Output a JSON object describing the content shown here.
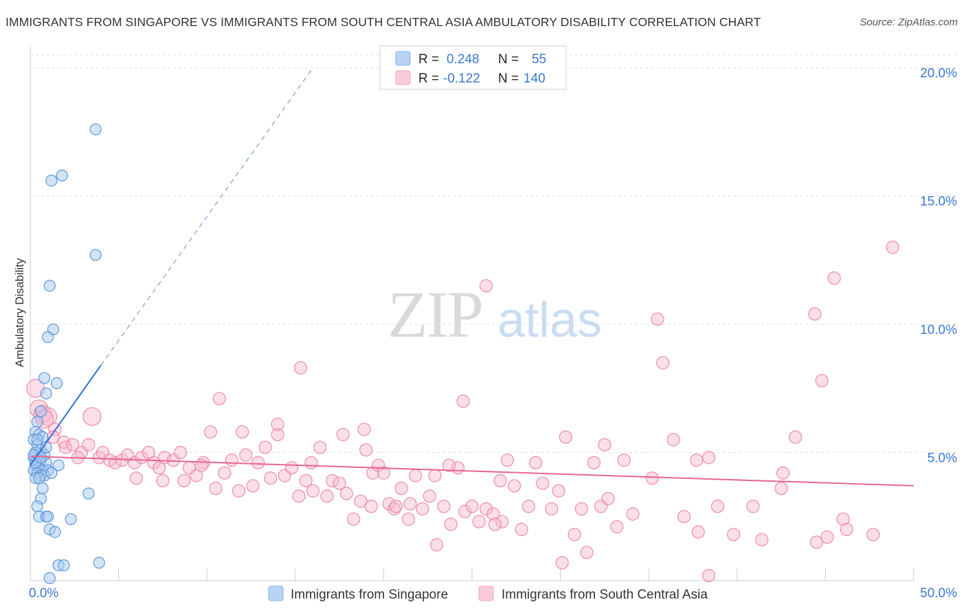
{
  "title": "IMMIGRANTS FROM SINGAPORE VS IMMIGRANTS FROM SOUTH CENTRAL ASIA AMBULATORY DISABILITY CORRELATION CHART",
  "source": "Source: ZipAtlas.com",
  "watermark": {
    "zip": "ZIP",
    "atlas": "atlas"
  },
  "legend_stats": [
    {
      "r_label": "R =",
      "r_value": "0.248",
      "n_label": "N =",
      "n_value": "55",
      "color": "#7fb3ea"
    },
    {
      "r_label": "R =",
      "r_value": "-0.122",
      "n_label": "N =",
      "n_value": "140",
      "color": "#f4a3bf"
    }
  ],
  "colors": {
    "blue_fill": "#a9c9f0",
    "blue_stroke": "#5b97dd",
    "blue_line": "#2f6fd1",
    "pink_fill": "#f7b9cc",
    "pink_stroke": "#ee8aaa",
    "pink_line": "#e8648f",
    "axis_text": "#3a78cf",
    "grid": "#dedede"
  },
  "chart_data": {
    "type": "scatter",
    "title": "IMMIGRANTS FROM SINGAPORE VS IMMIGRANTS FROM SOUTH CENTRAL ASIA AMBULATORY DISABILITY CORRELATION CHART",
    "xlabel": "",
    "ylabel": "Ambulatory Disability",
    "xlim": [
      0,
      50
    ],
    "ylim": [
      0,
      20.5
    ],
    "x_tick_labels": [
      "0.0%",
      "50.0%"
    ],
    "y_ticks": [
      5,
      10,
      15,
      20
    ],
    "y_tick_labels": [
      "5.0%",
      "10.0%",
      "15.0%",
      "20.0%"
    ],
    "grid": true,
    "legend_position": "bottom",
    "series": [
      {
        "name": "Immigrants from Singapore",
        "color": "#7fb3ea",
        "trend": {
          "x": [
            0.0,
            4.0
          ],
          "y": [
            4.5,
            8.4
          ],
          "extended_to": [
            16.0,
            20.0
          ]
        },
        "points": [
          [
            3.7,
            17.6
          ],
          [
            1.8,
            15.8
          ],
          [
            1.2,
            15.6
          ],
          [
            3.7,
            12.7
          ],
          [
            1.1,
            11.5
          ],
          [
            1.3,
            9.8
          ],
          [
            1.0,
            9.5
          ],
          [
            0.8,
            7.9
          ],
          [
            1.5,
            7.7
          ],
          [
            0.9,
            7.3
          ],
          [
            0.6,
            6.6
          ],
          [
            0.4,
            6.2
          ],
          [
            0.3,
            5.8
          ],
          [
            0.5,
            5.7
          ],
          [
            0.7,
            5.6
          ],
          [
            0.2,
            5.5
          ],
          [
            0.4,
            5.3
          ],
          [
            0.6,
            5.1
          ],
          [
            0.3,
            5.0
          ],
          [
            0.8,
            4.9
          ],
          [
            0.2,
            4.8
          ],
          [
            0.4,
            4.7
          ],
          [
            0.6,
            4.7
          ],
          [
            0.9,
            4.6
          ],
          [
            0.3,
            4.5
          ],
          [
            1.6,
            4.5
          ],
          [
            0.5,
            4.4
          ],
          [
            0.2,
            4.3
          ],
          [
            0.7,
            4.3
          ],
          [
            1.0,
            4.3
          ],
          [
            0.4,
            4.2
          ],
          [
            0.6,
            4.1
          ],
          [
            0.8,
            4.1
          ],
          [
            0.3,
            4.0
          ],
          [
            0.5,
            4.0
          ],
          [
            0.7,
            3.6
          ],
          [
            3.3,
            3.4
          ],
          [
            0.6,
            3.2
          ],
          [
            0.4,
            2.9
          ],
          [
            0.5,
            2.5
          ],
          [
            0.9,
            2.5
          ],
          [
            1.0,
            2.5
          ],
          [
            2.3,
            2.4
          ],
          [
            1.1,
            2.0
          ],
          [
            1.4,
            1.9
          ],
          [
            1.6,
            0.6
          ],
          [
            1.9,
            0.6
          ],
          [
            3.9,
            0.7
          ],
          [
            1.1,
            0.1
          ],
          [
            0.2,
            4.9
          ],
          [
            0.4,
            5.5
          ],
          [
            0.9,
            5.2
          ],
          [
            0.3,
            4.6
          ],
          [
            0.6,
            4.8
          ],
          [
            1.2,
            4.2
          ]
        ]
      },
      {
        "name": "Immigrants from South Central Asia",
        "color": "#f4a3bf",
        "trend": {
          "x": [
            0.0,
            50.0
          ],
          "y": [
            4.85,
            3.7
          ]
        },
        "points": [
          [
            0.3,
            7.5
          ],
          [
            0.5,
            6.7
          ],
          [
            0.7,
            6.5
          ],
          [
            1.0,
            6.4
          ],
          [
            0.8,
            6.3
          ],
          [
            1.4,
            5.9
          ],
          [
            1.3,
            5.6
          ],
          [
            1.9,
            5.4
          ],
          [
            2.0,
            5.2
          ],
          [
            2.4,
            5.3
          ],
          [
            2.9,
            5.0
          ],
          [
            3.3,
            5.3
          ],
          [
            3.5,
            6.4
          ],
          [
            2.7,
            4.8
          ],
          [
            3.9,
            4.8
          ],
          [
            4.1,
            5.0
          ],
          [
            4.5,
            4.7
          ],
          [
            4.8,
            4.6
          ],
          [
            5.2,
            4.7
          ],
          [
            5.5,
            4.9
          ],
          [
            5.9,
            4.6
          ],
          [
            6.3,
            4.8
          ],
          [
            6.7,
            5.0
          ],
          [
            7.0,
            4.6
          ],
          [
            7.3,
            4.4
          ],
          [
            7.6,
            4.8
          ],
          [
            8.1,
            4.7
          ],
          [
            8.5,
            5.0
          ],
          [
            9.0,
            4.4
          ],
          [
            9.4,
            4.1
          ],
          [
            9.8,
            4.6
          ],
          [
            10.2,
            5.8
          ],
          [
            10.5,
            3.6
          ],
          [
            11.0,
            4.2
          ],
          [
            11.4,
            4.7
          ],
          [
            11.8,
            3.5
          ],
          [
            12.2,
            4.9
          ],
          [
            12.6,
            3.7
          ],
          [
            12.9,
            4.6
          ],
          [
            13.3,
            5.2
          ],
          [
            13.6,
            4.0
          ],
          [
            14.0,
            5.7
          ],
          [
            14.4,
            4.1
          ],
          [
            14.8,
            4.4
          ],
          [
            15.2,
            3.3
          ],
          [
            15.6,
            3.9
          ],
          [
            16.0,
            3.5
          ],
          [
            16.4,
            5.2
          ],
          [
            16.8,
            3.3
          ],
          [
            17.1,
            3.9
          ],
          [
            17.5,
            3.8
          ],
          [
            17.9,
            3.4
          ],
          [
            18.3,
            2.4
          ],
          [
            18.7,
            3.1
          ],
          [
            19.0,
            5.1
          ],
          [
            19.4,
            4.2
          ],
          [
            19.7,
            4.5
          ],
          [
            20.0,
            4.2
          ],
          [
            20.3,
            3.0
          ],
          [
            20.6,
            2.8
          ],
          [
            21.0,
            3.6
          ],
          [
            21.4,
            2.4
          ],
          [
            21.8,
            4.1
          ],
          [
            22.2,
            2.8
          ],
          [
            22.6,
            3.3
          ],
          [
            23.0,
            1.4
          ],
          [
            23.4,
            2.9
          ],
          [
            23.8,
            2.2
          ],
          [
            24.2,
            4.4
          ],
          [
            24.6,
            2.7
          ],
          [
            25.0,
            2.9
          ],
          [
            25.4,
            2.3
          ],
          [
            25.8,
            2.8
          ],
          [
            26.2,
            2.6
          ],
          [
            26.7,
            2.3
          ],
          [
            27.0,
            4.7
          ],
          [
            27.4,
            3.7
          ],
          [
            27.8,
            2.0
          ],
          [
            28.2,
            2.9
          ],
          [
            28.6,
            4.6
          ],
          [
            29.0,
            3.8
          ],
          [
            29.5,
            2.8
          ],
          [
            29.9,
            3.5
          ],
          [
            30.3,
            5.6
          ],
          [
            30.8,
            1.8
          ],
          [
            31.2,
            2.8
          ],
          [
            31.5,
            1.1
          ],
          [
            31.9,
            4.6
          ],
          [
            32.3,
            2.9
          ],
          [
            32.7,
            3.2
          ],
          [
            33.2,
            2.1
          ],
          [
            33.6,
            4.7
          ],
          [
            34.1,
            2.6
          ],
          [
            35.2,
            4.0
          ],
          [
            35.8,
            8.5
          ],
          [
            36.4,
            5.5
          ],
          [
            37.0,
            2.5
          ],
          [
            37.7,
            4.7
          ],
          [
            38.4,
            4.8
          ],
          [
            38.9,
            2.9
          ],
          [
            39.8,
            1.8
          ],
          [
            40.9,
            2.9
          ],
          [
            42.6,
            4.2
          ],
          [
            43.3,
            5.6
          ],
          [
            44.8,
            7.8
          ],
          [
            46.0,
            2.4
          ],
          [
            35.5,
            10.2
          ],
          [
            44.4,
            10.4
          ],
          [
            45.5,
            11.8
          ],
          [
            25.8,
            11.5
          ],
          [
            48.8,
            13.0
          ],
          [
            15.3,
            8.3
          ],
          [
            10.7,
            7.1
          ],
          [
            24.5,
            7.0
          ],
          [
            14.0,
            6.1
          ],
          [
            17.7,
            5.7
          ],
          [
            18.9,
            5.9
          ],
          [
            12.0,
            5.8
          ],
          [
            9.7,
            4.5
          ],
          [
            6.0,
            4.0
          ],
          [
            7.5,
            3.9
          ],
          [
            8.7,
            3.9
          ],
          [
            15.9,
            4.6
          ],
          [
            22.9,
            4.1
          ],
          [
            26.6,
            3.9
          ],
          [
            42.5,
            3.6
          ],
          [
            44.5,
            1.5
          ],
          [
            45.1,
            1.7
          ],
          [
            46.2,
            2.0
          ],
          [
            47.7,
            1.8
          ],
          [
            41.4,
            1.6
          ],
          [
            30.1,
            0.7
          ],
          [
            38.4,
            0.2
          ],
          [
            23.7,
            4.5
          ],
          [
            32.5,
            5.3
          ],
          [
            20.7,
            2.9
          ],
          [
            26.3,
            2.2
          ],
          [
            37.8,
            1.9
          ],
          [
            19.3,
            2.9
          ],
          [
            21.5,
            3.0
          ]
        ]
      }
    ]
  }
}
